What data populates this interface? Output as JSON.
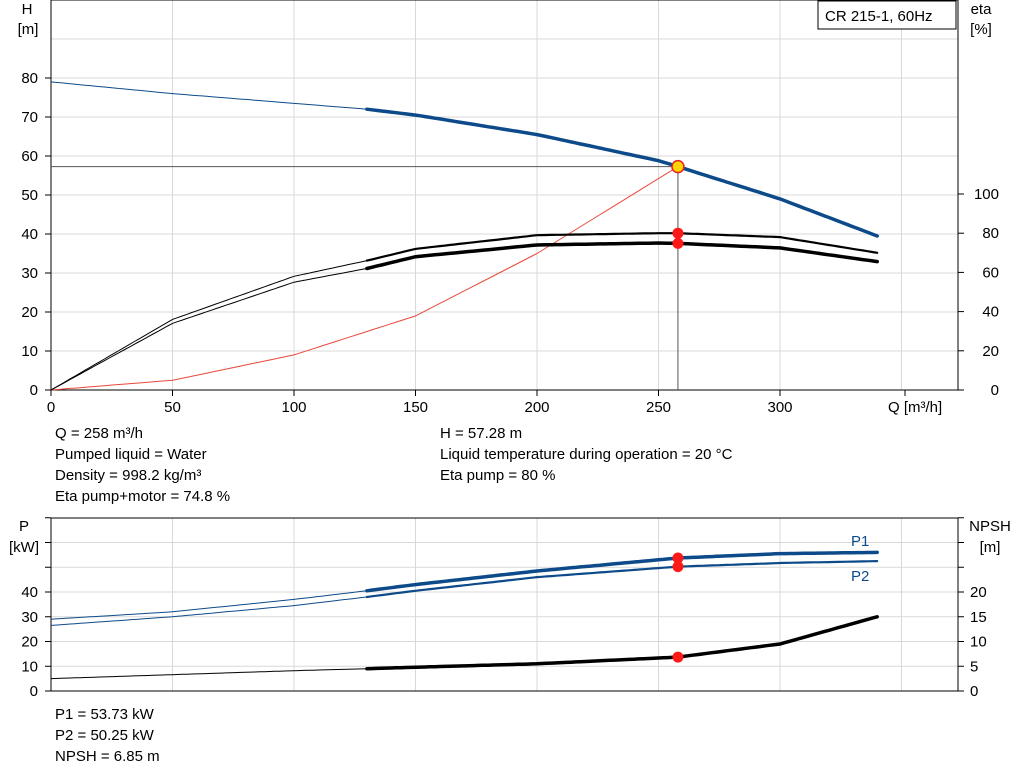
{
  "top_chart": {
    "legend_box": "CR 215-1, 60Hz",
    "left_axis": {
      "label": "H",
      "unit": "[m]",
      "ticks": [
        0,
        10,
        20,
        30,
        40,
        50,
        60,
        70,
        80
      ]
    },
    "right_axis": {
      "label": "eta",
      "unit": "[%]",
      "ticks": [
        0,
        20,
        40,
        60,
        80,
        100
      ]
    },
    "x_axis": {
      "label": "Q [m³/h]",
      "ticks": [
        0,
        50,
        100,
        150,
        200,
        250,
        300
      ]
    }
  },
  "top_info_left": [
    "Q = 258 m³/h",
    "Pumped liquid = Water",
    "Density = 998.2 kg/m³",
    "Eta pump+motor = 74.8 %"
  ],
  "top_info_right": [
    "H = 57.28 m",
    "Liquid temperature during operation = 20 °C",
    "Eta pump = 80 %"
  ],
  "bottom_chart": {
    "left_axis": {
      "label": "P",
      "unit": "[kW]",
      "ticks": [
        0,
        10,
        20,
        30,
        40
      ]
    },
    "right_axis": {
      "label": "NPSH",
      "unit": "[m]",
      "ticks": [
        0,
        5,
        10,
        15,
        20
      ]
    },
    "series_labels": {
      "p1": "P1",
      "p2": "P2"
    }
  },
  "bottom_info": [
    "P1 = 53.73 kW",
    "P2 = 50.25 kW",
    "NPSH = 6.85 m"
  ],
  "colors": {
    "head": "#0d4a8a",
    "eta": "#000000",
    "system": "#e8483c",
    "power": "#0d4a8a",
    "npsh": "#000000",
    "point": "#ff1a1a",
    "duty_fill": "#ffd400"
  },
  "chart_data": [
    {
      "type": "line",
      "title": "CR 215-1, 60Hz",
      "xlabel": "Q [m³/h]",
      "ylabel": "H [m]",
      "y2label": "eta [%]",
      "xlim": [
        0,
        340
      ],
      "ylim": [
        0,
        85
      ],
      "y2lim": [
        0,
        100
      ],
      "grid": true,
      "series": [
        {
          "axis": "left",
          "x": [
            0,
            50,
            100,
            130,
            150,
            200,
            250,
            258,
            300,
            340
          ],
          "y": [
            79,
            76,
            73.5,
            72,
            70.5,
            65.5,
            58.8,
            57.28,
            49,
            39.5
          ]
        },
        {
          "axis": "left",
          "x": [
            0,
            50,
            100,
            150,
            200,
            258
          ],
          "y": [
            0,
            2.5,
            9,
            19,
            35,
            57.28
          ]
        },
        {
          "axis": "right",
          "x": [
            0,
            50,
            100,
            130,
            150,
            200,
            250,
            258,
            300,
            340
          ],
          "y": [
            0,
            36,
            58,
            66,
            72,
            79,
            80,
            80,
            78,
            70
          ]
        },
        {
          "axis": "right",
          "x": [
            0,
            50,
            100,
            130,
            150,
            200,
            250,
            258,
            300,
            340
          ],
          "y": [
            0,
            34,
            55,
            62,
            68,
            74,
            75,
            74.8,
            72.5,
            65.5
          ]
        }
      ],
      "duty_point": {
        "x": 258,
        "y": 57.28
      },
      "markers": [
        {
          "x": 258,
          "y": 80,
          "axis": "right"
        },
        {
          "x": 258,
          "y": 74.8,
          "axis": "right"
        }
      ]
    },
    {
      "type": "line",
      "xlabel": "Q [m³/h]",
      "ylabel": "P [kW]",
      "y2label": "NPSH [m]",
      "xlim": [
        0,
        340
      ],
      "ylim": [
        0,
        60
      ],
      "y2lim": [
        0,
        30
      ],
      "grid": true,
      "series": [
        {
          "name": "P1",
          "axis": "left",
          "x": [
            0,
            50,
            100,
            130,
            150,
            200,
            258,
            300,
            340
          ],
          "y": [
            29,
            32,
            37,
            40.5,
            43,
            48.5,
            53.73,
            55.5,
            56
          ]
        },
        {
          "name": "P2",
          "axis": "left",
          "x": [
            0,
            50,
            100,
            130,
            150,
            200,
            258,
            300,
            340
          ],
          "y": [
            26.5,
            30,
            34.5,
            38,
            40.5,
            46,
            50.25,
            51.7,
            52.5
          ]
        },
        {
          "axis": "right",
          "x": [
            0,
            50,
            100,
            130,
            150,
            200,
            258,
            300,
            340
          ],
          "y": [
            2.5,
            3.3,
            4.1,
            4.5,
            4.8,
            5.5,
            6.85,
            9.5,
            15
          ]
        }
      ],
      "markers": [
        {
          "x": 258,
          "y": 53.73,
          "axis": "left"
        },
        {
          "x": 258,
          "y": 50.25,
          "axis": "left"
        },
        {
          "x": 258,
          "y": 6.85,
          "axis": "right"
        }
      ]
    }
  ]
}
